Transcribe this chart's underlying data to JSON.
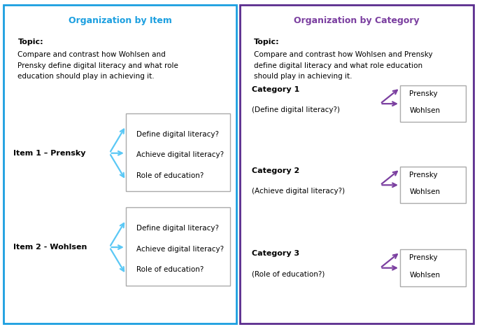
{
  "left_title": "Organization by Item",
  "right_title": "Organization by Category",
  "left_border_color": "#1B9FE0",
  "right_border_color": "#5B2D8E",
  "left_title_color": "#1B9FE0",
  "right_title_color": "#7B3FA0",
  "arrow_color_left": "#5BC8F5",
  "arrow_color_right": "#7B3FA0",
  "topic_label": "Topic:",
  "topic_text_left": "Compare and contrast how Wohlsen and\nPrensky define digital literacy and what role\neducation should play in achieving it.",
  "topic_text_right": "Compare and contrast how Wohlsen and Prensky\ndefine digital literacy and what role education\nshould play in achieving it.",
  "item1_label": "Item 1 – Prensky",
  "item2_label": "Item 2 - Wohlsen",
  "box_items": [
    "Define digital literacy?",
    "Achieve digital literacy?",
    "Role of education?"
  ],
  "cat1_label": "Category 1",
  "cat1_sub": "(Define digital literacy?)",
  "cat2_label": "Category 2",
  "cat2_sub": "(Achieve digital literacy?)",
  "cat3_label": "Category 3",
  "cat3_sub": "(Role of education?)",
  "cat_box_items": [
    "Prensky",
    "Wohlsen"
  ],
  "box_border_color": "#AAAAAA",
  "bg_color": "#FFFFFF",
  "figw": 6.82,
  "figh": 4.67,
  "dpi": 100
}
